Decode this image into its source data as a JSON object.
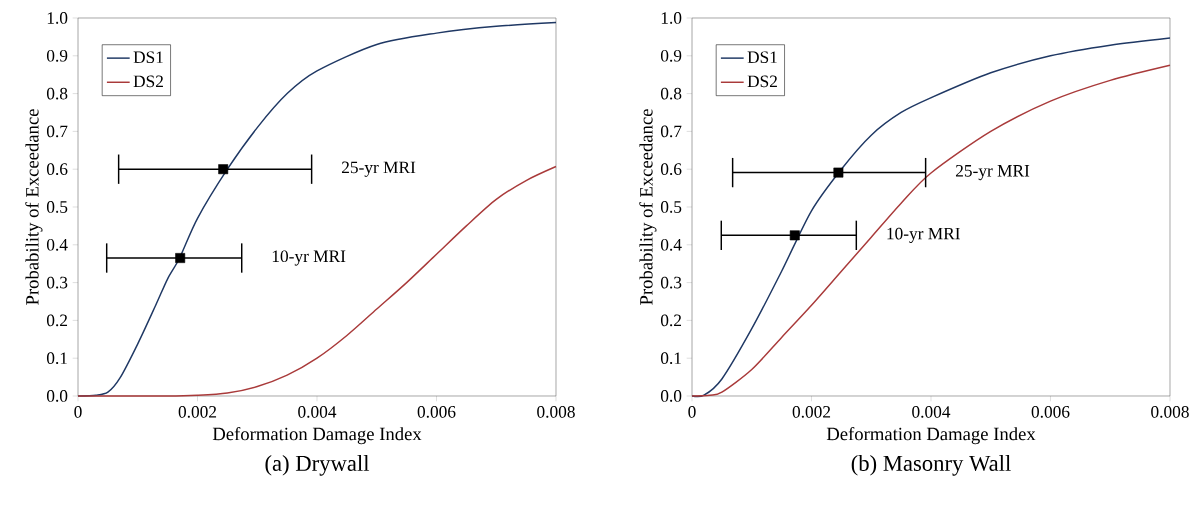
{
  "chart_data": [
    {
      "type": "line",
      "xlabel": "Deformation Damage Index",
      "ylabel": "Probability of Exceedance",
      "annotations": [
        "(a) Drywall",
        "25-yr MRI",
        "10-yr MRI"
      ],
      "xlim": [
        0,
        0.008
      ],
      "ylim": [
        0,
        1.0
      ],
      "xticks": [
        0,
        0.002,
        0.004,
        0.006,
        0.008
      ],
      "yticks": [
        {
          "value": 0,
          "label": "0.0"
        },
        {
          "value": 0.1,
          "label": "0.1"
        },
        {
          "value": 0.2,
          "label": "0.2"
        },
        {
          "value": 0.3,
          "label": "0.3"
        },
        {
          "value": 0.4,
          "label": "0.4"
        },
        {
          "value": 0.5,
          "label": "0.5"
        },
        {
          "value": 0.6,
          "label": "0.6"
        },
        {
          "value": 0.7,
          "label": "0.7"
        },
        {
          "value": 0.8,
          "label": "0.8"
        },
        {
          "value": 0.9,
          "label": "0.9"
        },
        {
          "value": 1.0,
          "label": "1.0"
        }
      ],
      "legend": "top left",
      "grid": false,
      "series": [
        {
          "name": "DS1",
          "color": "#1f3864",
          "x": [
            0,
            0.0003,
            0.0005,
            0.0007,
            0.001,
            0.0013,
            0.0015,
            0.0017,
            0.002,
            0.0025,
            0.003,
            0.0035,
            0.004,
            0.005,
            0.006,
            0.007,
            0.008
          ],
          "values": [
            0,
            0.002,
            0.01,
            0.047,
            0.138,
            0.24,
            0.31,
            0.365,
            0.47,
            0.6,
            0.71,
            0.8,
            0.86,
            0.93,
            0.96,
            0.978,
            0.988
          ]
        },
        {
          "name": "DS2",
          "color": "#a93a3a",
          "x": [
            0,
            0.0015,
            0.002,
            0.0025,
            0.003,
            0.0035,
            0.004,
            0.0045,
            0.005,
            0.0055,
            0.006,
            0.0065,
            0.007,
            0.0075,
            0.008
          ],
          "values": [
            0,
            0,
            0.002,
            0.008,
            0.025,
            0.055,
            0.1,
            0.16,
            0.23,
            0.3,
            0.375,
            0.45,
            0.52,
            0.57,
            0.607
          ]
        },
        {
          "type": "scatter",
          "color": "#000000",
          "marker": "square",
          "x": [
            0.00243,
            0.00171
          ],
          "values": [
            0.6,
            0.365
          ],
          "xerrors": [
            [
              0.00068,
              0.00391
            ],
            [
              0.00048,
              0.00274
            ]
          ]
        }
      ]
    },
    {
      "type": "line",
      "xlabel": "Deformation Damage Index",
      "ylabel": "Probability of Exceedance",
      "annotations": [
        "(b) Masonry Wall",
        "25-yr MRI",
        "10-yr MRI"
      ],
      "xlim": [
        0,
        0.008
      ],
      "ylim": [
        0,
        1.0
      ],
      "xticks": [
        0,
        0.002,
        0.004,
        0.006,
        0.008
      ],
      "yticks": [
        {
          "value": 0,
          "label": "0.0"
        },
        {
          "value": 0.1,
          "label": "0.1"
        },
        {
          "value": 0.2,
          "label": "0.2"
        },
        {
          "value": 0.3,
          "label": "0.3"
        },
        {
          "value": 0.4,
          "label": "0.4"
        },
        {
          "value": 0.5,
          "label": "0.5"
        },
        {
          "value": 0.6,
          "label": "0.6"
        },
        {
          "value": 0.7,
          "label": "0.7"
        },
        {
          "value": 0.8,
          "label": "0.8"
        },
        {
          "value": 0.9,
          "label": "0.9"
        },
        {
          "value": 1.0,
          "label": "1.0"
        }
      ],
      "legend": "top left",
      "grid": false,
      "series": [
        {
          "name": "DS1",
          "color": "#1f3864",
          "x": [
            0,
            0.0002,
            0.0005,
            0.001,
            0.0015,
            0.002,
            0.0025,
            0.003,
            0.0035,
            0.004,
            0.005,
            0.006,
            0.007,
            0.008
          ],
          "values": [
            0,
            0.002,
            0.045,
            0.178,
            0.33,
            0.49,
            0.6,
            0.69,
            0.75,
            0.789,
            0.855,
            0.9,
            0.928,
            0.947
          ]
        },
        {
          "name": "DS2",
          "color": "#a93a3a",
          "x": [
            0,
            0.0003,
            0.0005,
            0.001,
            0.0015,
            0.002,
            0.0025,
            0.003,
            0.0035,
            0.004,
            0.005,
            0.006,
            0.007,
            0.008
          ],
          "values": [
            0,
            0.002,
            0.01,
            0.07,
            0.155,
            0.24,
            0.33,
            0.42,
            0.51,
            0.59,
            0.7,
            0.78,
            0.835,
            0.875
          ]
        },
        {
          "type": "scatter",
          "color": "#000000",
          "marker": "square",
          "x": [
            0.00245,
            0.00172
          ],
          "values": [
            0.591,
            0.425
          ],
          "xerrors": [
            [
              0.00068,
              0.00391
            ],
            [
              0.00049,
              0.00275
            ]
          ]
        }
      ]
    }
  ]
}
